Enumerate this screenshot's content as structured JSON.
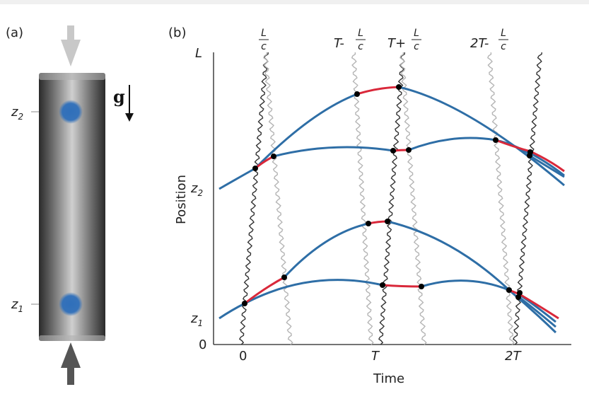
{
  "panels": {
    "a_label": "(a)",
    "b_label": "(b)"
  },
  "column": {
    "z2_label": "z",
    "z2_sub": "2",
    "z1_label": "z",
    "z1_sub": "1",
    "gravity_label": "g",
    "atom_color": "#2f6fba",
    "top_arrow_color": "#c8c8c8",
    "bottom_arrow_color": "#555555"
  },
  "plot": {
    "xlabel": "Time",
    "ylabel": "Position",
    "y_ticks": {
      "L": "L",
      "z2": "z",
      "z2_sub": "2",
      "z1": "z",
      "z1_sub": "1",
      "zero": "0"
    },
    "x_ticks": {
      "zero": "0",
      "T": "T",
      "twoT": "2T"
    },
    "top_labels": [
      {
        "prefix": "",
        "num": "L",
        "den": "c"
      },
      {
        "prefix": "T-",
        "num": "L",
        "den": "c"
      },
      {
        "prefix": "T+",
        "num": "L",
        "den": "c"
      },
      {
        "prefix": "2T-",
        "num": "L",
        "den": "c"
      }
    ],
    "colors": {
      "trajectory": "#2e6ea6",
      "highlight": "#d9283a",
      "dark_wave": "#333333",
      "light_wave": "#b5b5b5",
      "point": "#000000"
    }
  }
}
